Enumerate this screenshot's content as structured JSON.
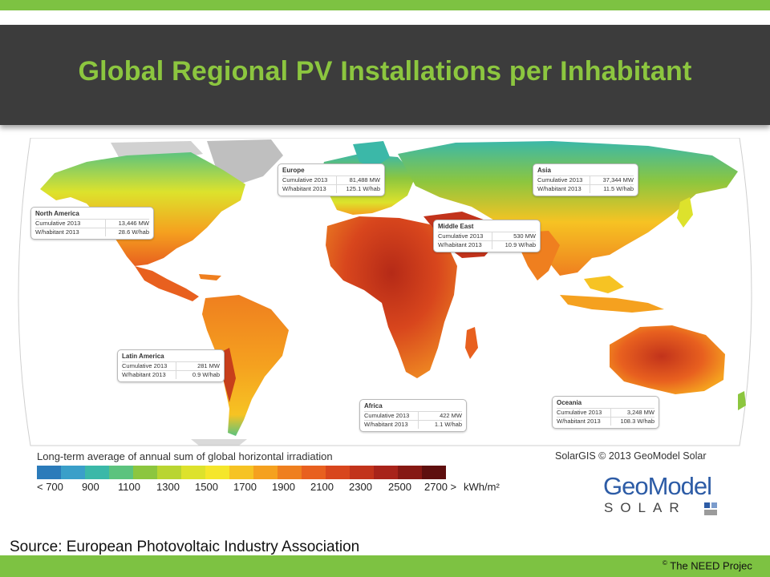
{
  "slide": {
    "title": "Global Regional PV Installations per Inhabitant",
    "source": "Source:  European Photovoltaic Industry Association",
    "copyright_symbol": "©",
    "copyright_text": " The NEED Projec"
  },
  "map": {
    "legend_caption": "Long-term average of annual sum of global horizontal irradiation",
    "credit": "SolarGIS © 2013 GeoModel Solar",
    "scale_colors": [
      "#2b7bba",
      "#3a9fc9",
      "#3bb8a8",
      "#5cc37e",
      "#8cc63f",
      "#b9d531",
      "#dde22c",
      "#f5e62b",
      "#f6c323",
      "#f5a11f",
      "#ef7f1f",
      "#e8601f",
      "#d8461d",
      "#c2331b",
      "#a8231a",
      "#861813",
      "#5e0f0e"
    ],
    "scale_labels": [
      "< 700",
      "900",
      "1100",
      "1300",
      "1500",
      "1700",
      "1900",
      "2100",
      "2300",
      "2500",
      "2700 >"
    ],
    "scale_unit": "kWh/m²",
    "regions": [
      {
        "name": "North America",
        "cum_label": "Cumulative 2013",
        "cum_value": "13,446 MW",
        "wh_label": "W/habitant 2013",
        "wh_value": "28.6 W/hab"
      },
      {
        "name": "Europe",
        "cum_label": "Cumulative 2013",
        "cum_value": "81,488 MW",
        "wh_label": "W/habitant 2013",
        "wh_value": "125.1 W/hab"
      },
      {
        "name": "Asia",
        "cum_label": "Cumulative 2013",
        "cum_value": "37,344 MW",
        "wh_label": "W/habitant 2013",
        "wh_value": "11.5 W/hab"
      },
      {
        "name": "Middle East",
        "cum_label": "Cumulative 2013",
        "cum_value": "530 MW",
        "wh_label": "W/habitant 2013",
        "wh_value": "10.9 W/hab"
      },
      {
        "name": "Latin America",
        "cum_label": "Cumulative 2013",
        "cum_value": "281 MW",
        "wh_label": "W/habitant 2013",
        "wh_value": "0.9 W/hab"
      },
      {
        "name": "Africa",
        "cum_label": "Cumulative 2013",
        "cum_value": "422 MW",
        "wh_label": "W/habitant 2013",
        "wh_value": "1.1 W/hab"
      },
      {
        "name": "Oceania",
        "cum_label": "Cumulative 2013",
        "cum_value": "3,248 MW",
        "wh_label": "W/habitant 2013",
        "wh_value": "108.3 W/hab"
      }
    ]
  },
  "logo": {
    "main": "GeoModel",
    "sub": "SOLAR"
  }
}
